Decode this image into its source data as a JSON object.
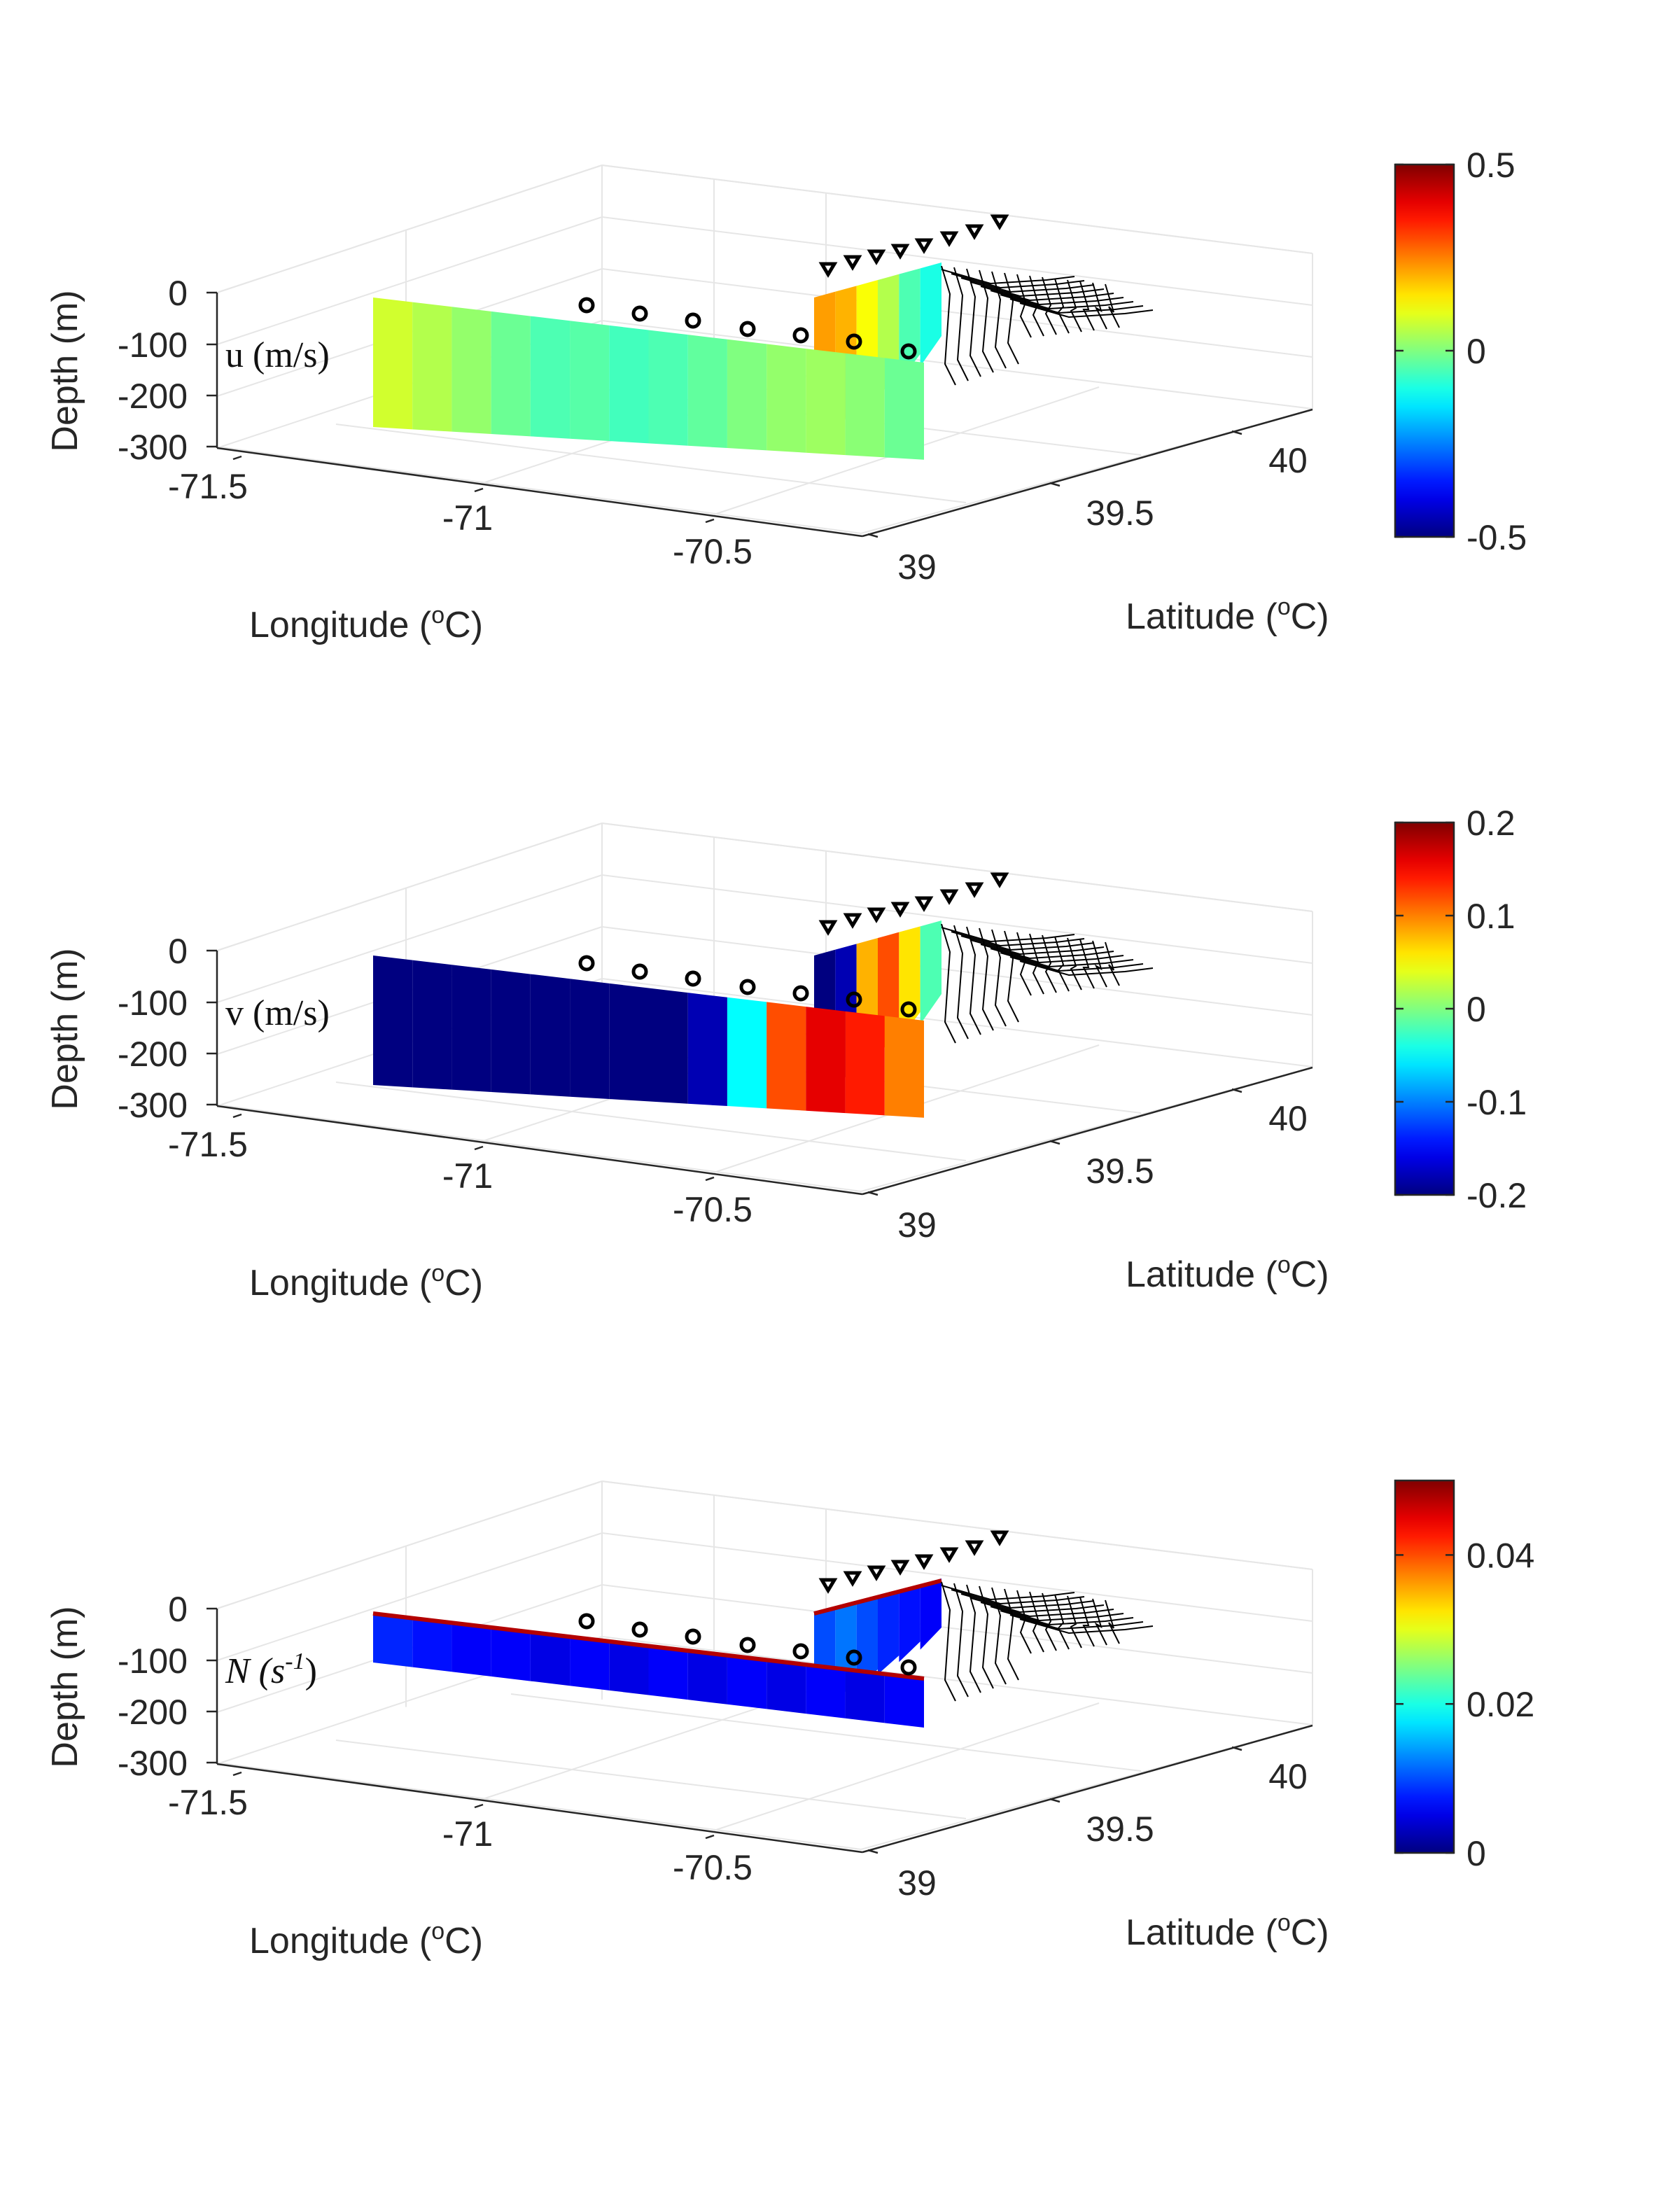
{
  "colormap": "jet",
  "colors": {
    "axis": "#262626",
    "grid": "#e6e6e6",
    "bathymetry": "#000000",
    "markers": "#000000",
    "cold": "#00008f",
    "hot": "#800000"
  },
  "chart_data": [
    {
      "type": "3d-section",
      "variable_label": "u (m/s)",
      "xlabel": "Longitude",
      "ylabel": "Latitude",
      "zlabel": "Depth (m)",
      "axis_unit": "o",
      "axis_unit_suffix": "C)",
      "xticks": [
        "-71.5",
        "-71",
        "-70.5"
      ],
      "yticks": [
        "39",
        "39.5",
        "40"
      ],
      "zticks": [
        "0",
        "-100",
        "-200",
        "-300"
      ],
      "clim": [
        -0.5,
        0.5
      ],
      "colorbar_ticks": [
        "0.5",
        "0",
        "-0.5"
      ],
      "colorbar_values": [
        0.5,
        0,
        -0.5
      ],
      "section_values": {
        "along_shelf": [
          0.08,
          0.05,
          0.02,
          -0.02,
          -0.05,
          -0.04,
          -0.06,
          -0.05,
          -0.03,
          0.0,
          0.02,
          0.03,
          0.01,
          -0.02
        ],
        "cross_shelf": [
          0.22,
          0.2,
          0.12,
          0.05,
          -0.05,
          -0.1
        ]
      }
    },
    {
      "type": "3d-section",
      "variable_label": "v (m/s)",
      "xlabel": "Longitude",
      "ylabel": "Latitude",
      "zlabel": "Depth (m)",
      "axis_unit": "o",
      "axis_unit_suffix": "C)",
      "xticks": [
        "-71.5",
        "-71",
        "-70.5"
      ],
      "yticks": [
        "39",
        "39.5",
        "40"
      ],
      "zticks": [
        "0",
        "-100",
        "-200",
        "-300"
      ],
      "clim": [
        -0.2,
        0.2
      ],
      "colorbar_ticks": [
        "0.2",
        "0.1",
        "0",
        "-0.1",
        "-0.2"
      ],
      "colorbar_values": [
        0.2,
        0.1,
        0,
        -0.1,
        -0.2
      ],
      "section_values": {
        "along_shelf": [
          -0.2,
          -0.2,
          -0.2,
          -0.2,
          -0.2,
          -0.2,
          -0.2,
          -0.2,
          -0.18,
          -0.05,
          0.12,
          0.16,
          0.14,
          0.1
        ],
        "cross_shelf": [
          -0.2,
          -0.18,
          0.08,
          0.12,
          0.06,
          -0.02
        ]
      }
    },
    {
      "type": "3d-section",
      "variable_label": "N (s-1)",
      "variable_base": "N (s",
      "variable_sup": "-1",
      "variable_close": ")",
      "xlabel": "Longitude",
      "ylabel": "Latitude",
      "zlabel": "Depth (m)",
      "axis_unit": "o",
      "axis_unit_suffix": "C)",
      "xticks": [
        "-71.5",
        "-71",
        "-70.5"
      ],
      "yticks": [
        "39",
        "39.5",
        "40"
      ],
      "zticks": [
        "0",
        "-100",
        "-200",
        "-300"
      ],
      "clim": [
        0,
        0.05
      ],
      "colorbar_ticks": [
        "0.04",
        "0.02",
        "0"
      ],
      "colorbar_values": [
        0.04,
        0.02,
        0
      ],
      "section_values": {
        "along_shelf": [
          0.008,
          0.007,
          0.006,
          0.006,
          0.005,
          0.006,
          0.005,
          0.006,
          0.005,
          0.006,
          0.005,
          0.006,
          0.005,
          0.006
        ],
        "cross_shelf": [
          0.01,
          0.012,
          0.01,
          0.008,
          0.007,
          0.006
        ]
      }
    }
  ]
}
